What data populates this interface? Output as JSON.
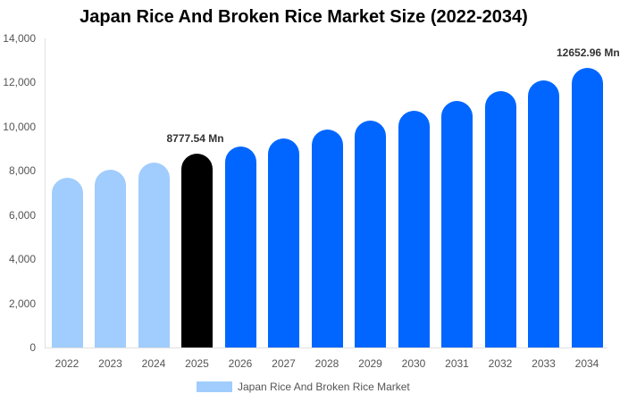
{
  "chart_data": {
    "type": "bar",
    "title": "Japan Rice And Broken Rice Market Size (2022-2034)",
    "xlabel": "",
    "ylabel": "",
    "ylim": [
      0,
      14000
    ],
    "yticks": [
      "0",
      "2,000",
      "4,000",
      "6,000",
      "8,000",
      "10,000",
      "12,000",
      "14,000"
    ],
    "categories": [
      "2022",
      "2023",
      "2024",
      "2025",
      "2026",
      "2027",
      "2028",
      "2029",
      "2030",
      "2031",
      "2032",
      "2033",
      "2034"
    ],
    "series": [
      {
        "name": "Japan Rice And Broken Rice Market",
        "values": [
          7700,
          8050,
          8380,
          8777.54,
          9110,
          9470,
          9870,
          10280,
          10720,
          11170,
          11620,
          12100,
          12652.96
        ]
      }
    ],
    "bar_colors": [
      "#a0cdfd",
      "#a0cdfd",
      "#a0cdfd",
      "#000000",
      "#0066ff",
      "#0066ff",
      "#0066ff",
      "#0066ff",
      "#0066ff",
      "#0066ff",
      "#0066ff",
      "#0066ff",
      "#0066ff"
    ],
    "annotations": [
      {
        "category": "2025",
        "text": "8777.54 Mn"
      },
      {
        "category": "2034",
        "text": "12652.96 Mn"
      }
    ],
    "legend": {
      "position": "bottom",
      "entries": [
        {
          "label": "Japan Rice And Broken Rice Market",
          "color": "#a0cdfd"
        }
      ]
    },
    "grid": false
  }
}
